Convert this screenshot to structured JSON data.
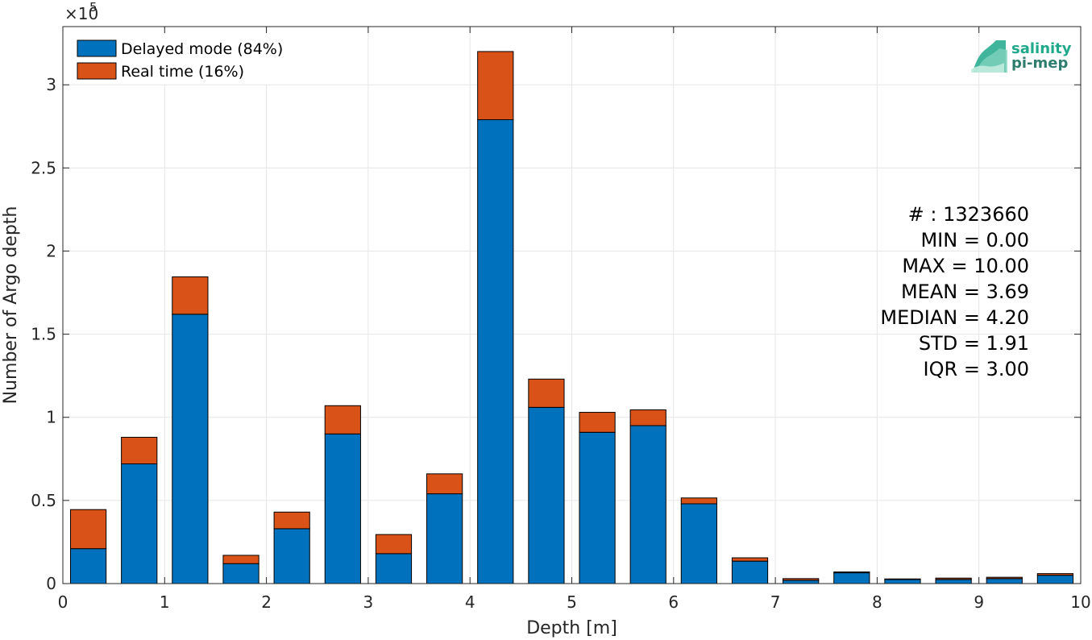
{
  "chart_data": {
    "type": "bar",
    "stacked": true,
    "xlabel": "Depth [m]",
    "ylabel": "Number of Argo depth",
    "y_exponent_label": "×10",
    "y_exponent_power": "5",
    "xlim": [
      0,
      10
    ],
    "ylim": [
      0,
      3.35
    ],
    "x_ticks": [
      "0",
      "1",
      "2",
      "3",
      "4",
      "5",
      "6",
      "7",
      "8",
      "9",
      "10"
    ],
    "y_ticks": [
      "0",
      "0.5",
      "1",
      "1.5",
      "2",
      "2.5",
      "3"
    ],
    "grid": true,
    "legend_position": "top-left",
    "bin_centers": [
      0.25,
      0.75,
      1.25,
      1.75,
      2.25,
      2.75,
      3.25,
      3.75,
      4.25,
      4.75,
      5.25,
      5.75,
      6.25,
      6.75,
      7.25,
      7.75,
      8.25,
      8.75,
      9.25,
      9.75
    ],
    "series": [
      {
        "name": "Delayed mode (84%)",
        "color": "#0072BD",
        "values": [
          0.21,
          0.72,
          1.62,
          0.12,
          0.33,
          0.9,
          0.18,
          0.54,
          2.79,
          1.06,
          0.91,
          0.95,
          0.48,
          0.135,
          0.02,
          0.065,
          0.025,
          0.025,
          0.03,
          0.05
        ]
      },
      {
        "name": "Real time (16%)",
        "color": "#D95319",
        "values": [
          0.235,
          0.16,
          0.225,
          0.05,
          0.1,
          0.17,
          0.115,
          0.12,
          0.41,
          0.17,
          0.12,
          0.095,
          0.035,
          0.02,
          0.01,
          0.005,
          0.003,
          0.008,
          0.008,
          0.01
        ]
      }
    ]
  },
  "stats": [
    "# : 1323660",
    "MIN = 0.00",
    "MAX =  10.00",
    "MEAN = 3.69",
    "MEDIAN = 4.20",
    "STD = 1.91",
    "IQR = 3.00"
  ],
  "logo": {
    "line1": "salinity",
    "line2": "pi-mep",
    "color1": "#1FA88A",
    "color2": "#2E7D6F"
  }
}
